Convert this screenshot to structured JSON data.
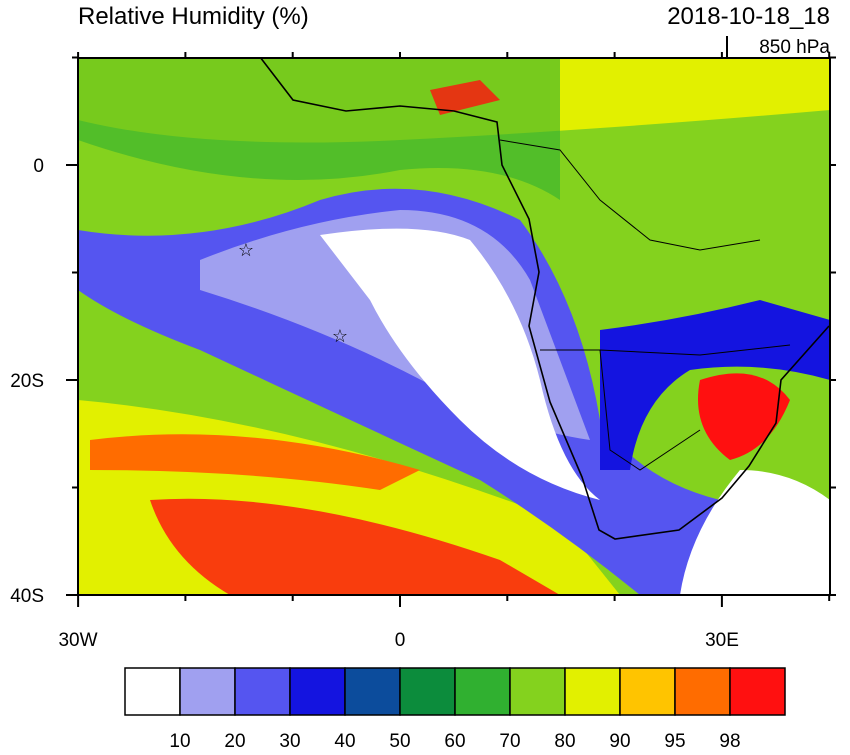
{
  "header": {
    "title": "Relative Humidity (%)",
    "date": "2018-10-18_18",
    "level": "850 hPa"
  },
  "map": {
    "lat_labels": [
      "0",
      "20S",
      "40S"
    ],
    "lon_labels": [
      "30W",
      "0",
      "30E"
    ]
  },
  "colorbar": {
    "colors": [
      "#ffffff",
      "#a0a0f0",
      "#5555f0",
      "#1414e0",
      "#0c4c9c",
      "#0c8c3c",
      "#30b030",
      "#84d21e",
      "#e2f000",
      "#ffc400",
      "#ff6c00",
      "#ff1010"
    ],
    "labels": [
      10,
      20,
      30,
      40,
      50,
      60,
      70,
      80,
      90,
      95,
      98
    ]
  }
}
